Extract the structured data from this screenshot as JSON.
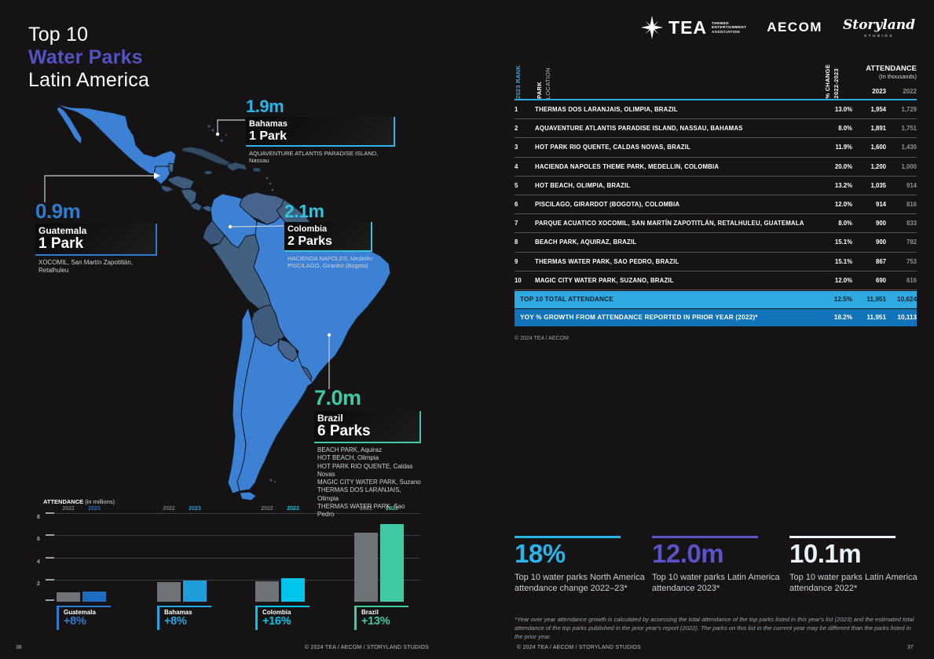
{
  "page": {
    "background": "#151314",
    "left_page_number": "36",
    "right_page_number": "37",
    "copyright_left": "© 2024 TEA / AECOM / STORYLAND STUDIOS",
    "copyright_right": "© 2024 TEA / AECOM / STORYLAND STUDIOS"
  },
  "title": {
    "line1": "Top 10",
    "line2": "Water Parks",
    "line3": "Latin America",
    "accent_color": "#5352c4"
  },
  "logos": {
    "tea": {
      "name": "TEA",
      "sub1": "THEMED",
      "sub2": "ENTERTAINMENT",
      "sub3": "ASSOCIATION"
    },
    "aecom": {
      "name": "AECOM"
    },
    "storyland": {
      "name": "Storyland",
      "sub": "STUDIOS"
    }
  },
  "map": {
    "highlight_color": "#3d81d4",
    "muted_color": "#3f5c7c",
    "callouts": [
      {
        "id": "bahamas",
        "value": "1.9m",
        "country": "Bahamas",
        "parks": "1 Park",
        "accent": "#2ab4ea",
        "parks_list": [
          "AQUAVENTURE ATLANTIS PARADISE ISLAND, Nassau"
        ]
      },
      {
        "id": "guatemala",
        "value": "0.9m",
        "country": "Guatemala",
        "parks": "1 Park",
        "accent": "#2e7ccd",
        "parks_list": [
          "XOCOMIL, San Martín Zapotitlán, Retalhuleu"
        ]
      },
      {
        "id": "colombia",
        "value": "2.1m",
        "country": "Colombia",
        "parks": "2 Parks",
        "accent": "#35c4e0",
        "parks_list": [
          "HACIENDA NAPOLES, Medellin",
          "PISCILAGO, Girardot (Bogota)"
        ]
      },
      {
        "id": "brazil",
        "value": "7.0m",
        "country": "Brazil",
        "parks": "6 Parks",
        "accent": "#41c9a6",
        "parks_list": [
          "BEACH PARK, Aquiraz",
          "HOT BEACH, Olimpia",
          "HOT PARK RIO QUENTE, Caldas Novas",
          "MAGIC CITY WATER PARK, Suzano",
          "THERMAS DOS LARANJAIS, Olimpia",
          "THERMAS WATER PARK, Sao Pedro"
        ]
      }
    ]
  },
  "table": {
    "accent_color": "#29abe2",
    "headers": {
      "rank": "2023 RANK",
      "park": "PARK",
      "location": "LOCATION",
      "change1": "% CHANGE",
      "change2": "2022-2023",
      "attendance": "ATTENDANCE",
      "attendance_sub": "(In thousands)",
      "year_current": "2023",
      "year_prior": "2022"
    },
    "rows": [
      {
        "rank": "1",
        "park": "THERMAS DOS LARANJAIS, OLIMPIA, BRAZIL",
        "change": "13.0%",
        "y2023": "1,954",
        "y2022": "1,729"
      },
      {
        "rank": "2",
        "park": "AQUAVENTURE ATLANTIS PARADISE ISLAND, NASSAU, BAHAMAS",
        "change": "8.0%",
        "y2023": "1,891",
        "y2022": "1,751"
      },
      {
        "rank": "3",
        "park": "HOT PARK RIO QUENTE, CALDAS NOVAS, BRAZIL",
        "change": "11.9%",
        "y2023": "1,600",
        "y2022": "1,430"
      },
      {
        "rank": "4",
        "park": "HACIENDA NAPOLES THEME PARK, MEDELLIN, COLOMBIA",
        "change": "20.0%",
        "y2023": "1,200",
        "y2022": "1,000"
      },
      {
        "rank": "5",
        "park": "HOT BEACH, OLIMPIA, BRAZIL",
        "change": "13.2%",
        "y2023": "1,035",
        "y2022": "914"
      },
      {
        "rank": "6",
        "park": "PISCILAGO, GIRARDOT (BOGOTA), COLOMBIA",
        "change": "12.0%",
        "y2023": "914",
        "y2022": "816"
      },
      {
        "rank": "7",
        "park": "PARQUE ACUATICO XOCOMIL, SAN MARTÍN ZAPOTITLÁN, RETALHULEU, GUATEMALA",
        "change": "8.0%",
        "y2023": "900",
        "y2022": "833"
      },
      {
        "rank": "8",
        "park": "BEACH PARK, AQUIRAZ, BRAZIL",
        "change": "15.1%",
        "y2023": "900",
        "y2022": "782"
      },
      {
        "rank": "9",
        "park": "THERMAS WATER PARK, SAO PEDRO, BRAZIL",
        "change": "15.1%",
        "y2023": "867",
        "y2022": "753"
      },
      {
        "rank": "10",
        "park": "MAGIC CITY WATER PARK, SUZANO, BRAZIL",
        "change": "12.0%",
        "y2023": "690",
        "y2022": "616"
      }
    ],
    "totals": [
      {
        "label": "TOP 10 TOTAL ATTENDANCE",
        "change": "12.5%",
        "y2023": "11,951",
        "y2022": "10,624",
        "bg": "#2fa9e2",
        "text": "#06222e"
      },
      {
        "label": "YOY % GROWTH FROM ATTENDANCE REPORTED IN PRIOR YEAR (2022)*",
        "change": "18.2%",
        "y2023": "11,951",
        "y2022": "10,113",
        "bg": "#1173ba",
        "text": "#ffffff"
      }
    ],
    "copyright": "© 2024 TEA / AECOM"
  },
  "chart_data": {
    "type": "bar",
    "title_bold": "ATTENDANCE",
    "title_rest": " (in millions)",
    "categories": [
      "Guatemala",
      "Bahamas",
      "Colombia",
      "Brazil"
    ],
    "series": [
      {
        "name": "2022",
        "values": [
          0.83,
          1.75,
          1.82,
          6.22
        ],
        "color": "#6e7377"
      },
      {
        "name": "2023",
        "values": [
          0.9,
          1.89,
          2.11,
          7.05
        ],
        "colors": [
          "#1d6cbd",
          "#1f9cd9",
          "#00c3ea",
          "#41c9a6"
        ]
      }
    ],
    "changes": [
      "+8%",
      "+8%",
      "+16%",
      "+13%"
    ],
    "change_colors": [
      "#2e7ccd",
      "#24a7e0",
      "#00c3ea",
      "#41c9a6"
    ],
    "xlabel": "",
    "ylabel": "ATTENDANCE (in millions)",
    "ylim": [
      0,
      8
    ],
    "yticks": [
      2,
      4,
      6,
      8
    ],
    "grid": true,
    "year_label_muted": "#72777b"
  },
  "stats": [
    {
      "value": "18%",
      "label": "Top 10 water parks North America attendance change 2022–23*",
      "color": "#29b5ea"
    },
    {
      "value": "12.0m",
      "label": "Top 10 water parks Latin America attendance 2023*",
      "color": "#5a52c7"
    },
    {
      "value": "10.1m",
      "label": "Top 10 water parks Latin America attendance 2022*",
      "color": "#e9f3f8"
    }
  ],
  "footnote": "*Year over year attendance growth is calculated by assessing the total attendance of the top parks listed in this year's list (2023) and the estimated total attendance of the top parks published in the prior year's report (2022). The parks on this list in the current year may be different than the parks listed in the prior year."
}
